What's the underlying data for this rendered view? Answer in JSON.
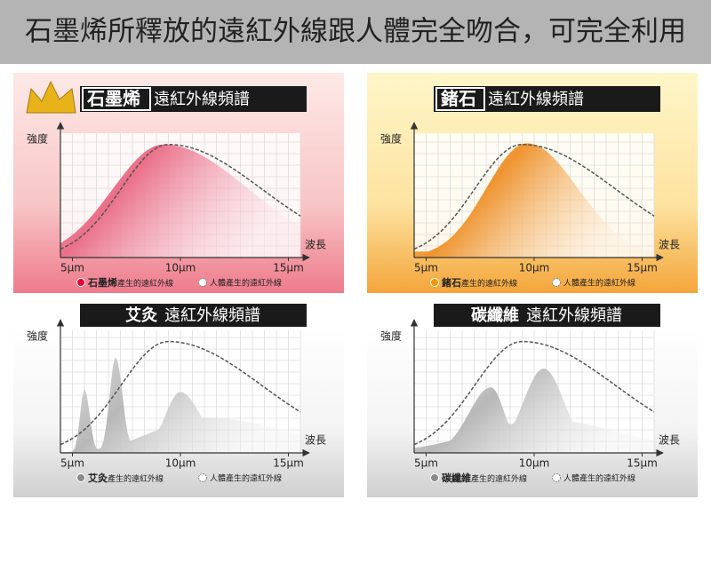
{
  "title": "石墨烯所釋放的遠紅外線跟人體完全吻合，可完全利用",
  "panels": [
    {
      "header": {
        "highlight": "石墨烯",
        "text": "遠紅外線頻譜"
      },
      "y_label": "強度",
      "x_label": "波長",
      "x_ticks": [
        "5μm",
        "10μm",
        "15μm"
      ],
      "legend": [
        {
          "name": "石墨烯",
          "text": "產生的遠紅外線"
        },
        {
          "text": "人體產生的遠紅外線"
        }
      ]
    },
    {
      "header": {
        "highlight": "鍺石",
        "text": "遠紅外線頻譜"
      },
      "y_label": "強度",
      "x_label": "波長",
      "x_ticks": [
        "5μm",
        "10μm",
        "15μm"
      ],
      "legend": [
        {
          "name": "鍺石",
          "text": "產生的遠紅外線"
        },
        {
          "text": "人體產生的遠紅外線"
        }
      ]
    },
    {
      "header": {
        "highlight": "艾灸",
        "text": "遠紅外線頻譜"
      },
      "y_label": "強度",
      "x_label": "波長",
      "x_ticks": [
        "5μm",
        "10μm",
        "15μm"
      ],
      "legend": [
        {
          "name": "艾灸",
          "text": "產生的遠紅外線"
        },
        {
          "text": "人體產生的遠紅外線"
        }
      ]
    },
    {
      "header": {
        "highlight": "碳纖維",
        "text": "遠紅外線頻譜"
      },
      "y_label": "強度",
      "x_label": "波長",
      "x_ticks": [
        "5μm",
        "10μm",
        "15μm"
      ],
      "legend": [
        {
          "name": "碳纖維",
          "text": "產生的遠紅外線"
        },
        {
          "text": "人體產生的遠紅外線"
        }
      ]
    }
  ]
}
